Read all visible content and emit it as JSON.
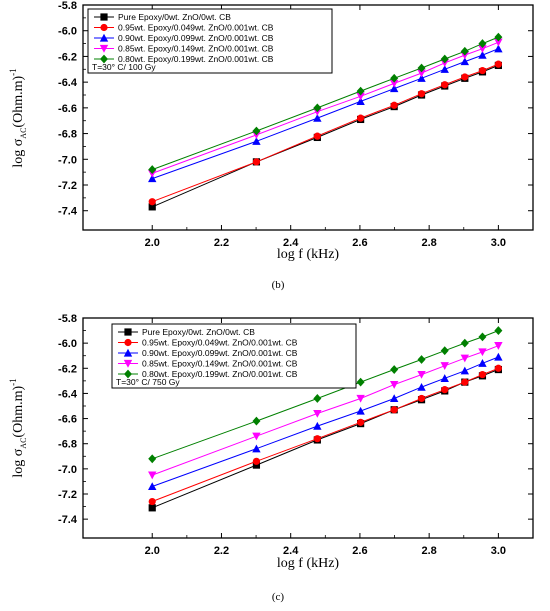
{
  "chart_data": [
    {
      "panel_label": "(b)",
      "type": "line",
      "xlabel": "log f (kHz)",
      "ylabel": {
        "main": "log σ",
        "subscript": "AC",
        "rest": "(Ohm.m)",
        "superscript": "-1"
      },
      "xlim": [
        1.8,
        3.1
      ],
      "ylim": [
        -7.55,
        -5.8
      ],
      "x_ticks": [
        2.0,
        2.2,
        2.4,
        2.6,
        2.8,
        3.0
      ],
      "x_tick_labels": [
        "2.0",
        "2.2",
        "2.4",
        "2.6",
        "2.8",
        "3.0"
      ],
      "y_ticks": [
        -7.4,
        -7.2,
        -7.0,
        -6.8,
        -6.6,
        -6.4,
        -6.2,
        -6.0,
        -5.8
      ],
      "y_tick_labels": [
        "-7.4",
        "-7.2",
        "-7.0",
        "-6.8",
        "-6.6",
        "-6.4",
        "-6.2",
        "-6.0",
        "-5.8"
      ],
      "legend_note": "T=30° C/ 100 Gy",
      "legend_position": "top-left",
      "x": [
        2.0,
        2.301,
        2.477,
        2.602,
        2.699,
        2.778,
        2.845,
        2.903,
        2.954,
        3.0
      ],
      "series": [
        {
          "name": "Pure Epoxy/0wt. ZnO/0wt. CB",
          "color": "#000000",
          "marker": "square",
          "values": [
            -7.37,
            -7.02,
            -6.83,
            -6.69,
            -6.59,
            -6.5,
            -6.43,
            -6.37,
            -6.32,
            -6.27
          ]
        },
        {
          "name": "0.95wt. Epoxy/0.049wt. ZnO/0.001wt. CB",
          "color": "#ff0000",
          "marker": "circle",
          "values": [
            -7.33,
            -7.02,
            -6.82,
            -6.68,
            -6.58,
            -6.49,
            -6.42,
            -6.36,
            -6.31,
            -6.26
          ]
        },
        {
          "name": "0.90wt. Epoxy/0.099wt. ZnO/0.001wt. CB",
          "color": "#0000ff",
          "marker": "triangle-up",
          "values": [
            -7.15,
            -6.86,
            -6.68,
            -6.55,
            -6.45,
            -6.37,
            -6.3,
            -6.24,
            -6.19,
            -6.14
          ]
        },
        {
          "name": "0.85wt. Epoxy/0.149wt. ZnO/0.001wt. CB",
          "color": "#ff00ff",
          "marker": "triangle-down",
          "values": [
            -7.11,
            -6.81,
            -6.63,
            -6.51,
            -6.41,
            -6.33,
            -6.25,
            -6.19,
            -6.14,
            -6.09
          ]
        },
        {
          "name": "0.80wt. Epoxy/0.199wt. ZnO/0.001wt. CB",
          "color": "#008000",
          "marker": "diamond",
          "values": [
            -7.08,
            -6.78,
            -6.6,
            -6.47,
            -6.37,
            -6.29,
            -6.22,
            -6.16,
            -6.1,
            -6.05
          ]
        }
      ]
    },
    {
      "panel_label": "(c)",
      "type": "line",
      "xlabel": "log f (kHz)",
      "ylabel": {
        "main": "log σ",
        "subscript": "AC",
        "rest": "(Ohm.m)",
        "superscript": "-1"
      },
      "xlim": [
        1.8,
        3.1
      ],
      "ylim": [
        -7.55,
        -5.8
      ],
      "x_ticks": [
        2.0,
        2.2,
        2.4,
        2.6,
        2.8,
        3.0
      ],
      "x_tick_labels": [
        "2.0",
        "2.2",
        "2.4",
        "2.6",
        "2.8",
        "3.0"
      ],
      "y_ticks": [
        -7.4,
        -7.2,
        -7.0,
        -6.8,
        -6.6,
        -6.4,
        -6.2,
        -6.0,
        -5.8
      ],
      "y_tick_labels": [
        "-7.4",
        "-7.2",
        "-7.0",
        "-6.8",
        "-6.6",
        "-6.4",
        "-6.2",
        "-6.0",
        "-5.8"
      ],
      "legend_note": "T=30° C/ 750 Gy",
      "legend_position": "top-left",
      "x": [
        2.0,
        2.301,
        2.477,
        2.602,
        2.699,
        2.778,
        2.845,
        2.903,
        2.954,
        3.0
      ],
      "series": [
        {
          "name": "Pure Epoxy/0wt. ZnO/0wt. CB",
          "color": "#000000",
          "marker": "square",
          "values": [
            -7.31,
            -6.97,
            -6.77,
            -6.64,
            -6.53,
            -6.45,
            -6.38,
            -6.31,
            -6.26,
            -6.21
          ]
        },
        {
          "name": "0.95wt. Epoxy/0.049wt. ZnO/0.001wt. CB",
          "color": "#ff0000",
          "marker": "circle",
          "values": [
            -7.26,
            -6.94,
            -6.76,
            -6.63,
            -6.53,
            -6.44,
            -6.37,
            -6.31,
            -6.25,
            -6.2
          ]
        },
        {
          "name": "0.90wt. Epoxy/0.099wt. ZnO/0.001wt. CB",
          "color": "#0000ff",
          "marker": "triangle-up",
          "values": [
            -7.14,
            -6.84,
            -6.66,
            -6.54,
            -6.44,
            -6.35,
            -6.28,
            -6.22,
            -6.16,
            -6.11
          ]
        },
        {
          "name": "0.85wt. Epoxy/0.149wt. ZnO/0.001wt. CB",
          "color": "#ff00ff",
          "marker": "triangle-down",
          "values": [
            -7.05,
            -6.74,
            -6.56,
            -6.44,
            -6.33,
            -6.25,
            -6.18,
            -6.12,
            -6.07,
            -6.02
          ]
        },
        {
          "name": "0.80wt. Epoxy/0.199wt. ZnO/0.001wt. CB",
          "color": "#008000",
          "marker": "diamond",
          "values": [
            -6.92,
            -6.62,
            -6.44,
            -6.31,
            -6.21,
            -6.13,
            -6.06,
            -6.0,
            -5.95,
            -5.9
          ]
        }
      ]
    }
  ]
}
